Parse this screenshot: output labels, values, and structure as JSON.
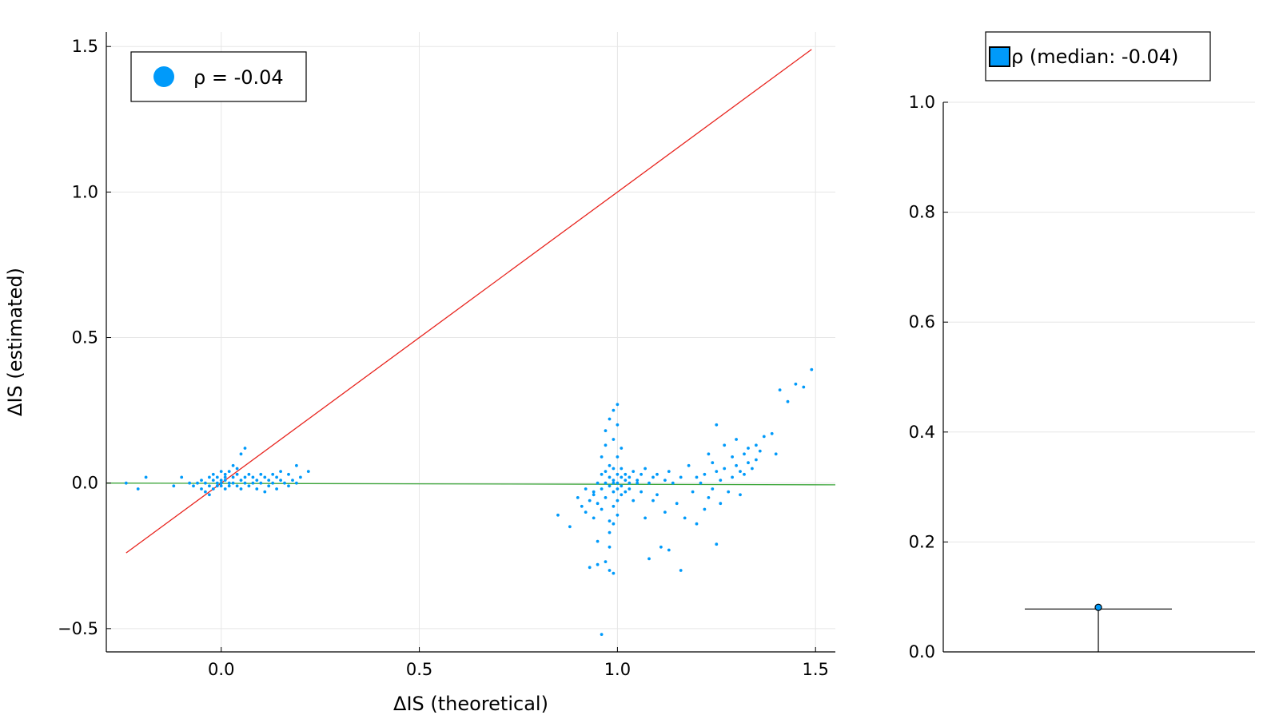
{
  "chart_data": [
    {
      "type": "scatter",
      "title": "",
      "xlabel": "ΔIS (theoretical)",
      "ylabel": "ΔIS (estimated)",
      "xlim": [
        -0.29,
        1.55
      ],
      "ylim": [
        -0.58,
        1.55
      ],
      "xticks": [
        0.0,
        0.5,
        1.0,
        1.5
      ],
      "xtick_labels": [
        "0.0",
        "0.5",
        "1.0",
        "1.5"
      ],
      "yticks": [
        -0.5,
        0.0,
        0.5,
        1.0,
        1.5
      ],
      "ytick_labels": [
        "−0.5",
        "0.0",
        "0.5",
        "1.0",
        "1.5"
      ],
      "grid": true,
      "legend": {
        "position": "top-left",
        "entries": [
          "ρ = -0.04"
        ]
      },
      "series": [
        {
          "name": "ρ = -0.04",
          "color": "#009AFA",
          "points": [
            [
              -0.24,
              0.0
            ],
            [
              -0.21,
              -0.02
            ],
            [
              -0.19,
              0.02
            ],
            [
              -0.12,
              -0.01
            ],
            [
              -0.1,
              0.02
            ],
            [
              -0.08,
              0.0
            ],
            [
              -0.07,
              -0.01
            ],
            [
              -0.06,
              0.0
            ],
            [
              -0.05,
              -0.02
            ],
            [
              -0.05,
              0.01
            ],
            [
              -0.04,
              -0.03
            ],
            [
              -0.04,
              0.0
            ],
            [
              -0.03,
              0.02
            ],
            [
              -0.03,
              -0.01
            ],
            [
              -0.03,
              -0.04
            ],
            [
              -0.02,
              0.01
            ],
            [
              -0.02,
              -0.02
            ],
            [
              -0.02,
              0.03
            ],
            [
              -0.01,
              0.0
            ],
            [
              -0.01,
              -0.01
            ],
            [
              -0.01,
              0.02
            ],
            [
              0.0,
              0.01
            ],
            [
              0.0,
              -0.01
            ],
            [
              0.0,
              0.04
            ],
            [
              0.0,
              0.0
            ],
            [
              0.01,
              0.02
            ],
            [
              0.01,
              -0.02
            ],
            [
              0.01,
              0.03
            ],
            [
              0.01,
              0.01
            ],
            [
              0.02,
              0.0
            ],
            [
              0.02,
              0.04
            ],
            [
              0.02,
              -0.01
            ],
            [
              0.03,
              0.02
            ],
            [
              0.03,
              0.06
            ],
            [
              0.03,
              0.0
            ],
            [
              0.04,
              0.03
            ],
            [
              0.04,
              -0.01
            ],
            [
              0.04,
              0.05
            ],
            [
              0.05,
              0.1
            ],
            [
              0.05,
              0.01
            ],
            [
              0.05,
              -0.02
            ],
            [
              0.06,
              0.12
            ],
            [
              0.06,
              0.02
            ],
            [
              0.06,
              0.0
            ],
            [
              0.07,
              0.03
            ],
            [
              0.07,
              -0.01
            ],
            [
              0.08,
              0.02
            ],
            [
              0.08,
              0.0
            ],
            [
              0.09,
              -0.02
            ],
            [
              0.09,
              0.01
            ],
            [
              0.1,
              0.03
            ],
            [
              0.1,
              0.0
            ],
            [
              0.11,
              0.02
            ],
            [
              0.11,
              -0.03
            ],
            [
              0.12,
              0.01
            ],
            [
              0.12,
              -0.01
            ],
            [
              0.13,
              0.03
            ],
            [
              0.13,
              0.0
            ],
            [
              0.14,
              0.02
            ],
            [
              0.14,
              -0.02
            ],
            [
              0.15,
              0.04
            ],
            [
              0.15,
              0.01
            ],
            [
              0.16,
              0.0
            ],
            [
              0.17,
              0.03
            ],
            [
              0.17,
              -0.01
            ],
            [
              0.18,
              0.01
            ],
            [
              0.19,
              0.06
            ],
            [
              0.19,
              0.0
            ],
            [
              0.2,
              0.02
            ],
            [
              0.22,
              0.04
            ],
            [
              0.85,
              -0.11
            ],
            [
              0.88,
              -0.15
            ],
            [
              0.9,
              -0.05
            ],
            [
              0.91,
              -0.08
            ],
            [
              0.92,
              -0.02
            ],
            [
              0.92,
              -0.1
            ],
            [
              0.93,
              -0.06
            ],
            [
              0.93,
              -0.29
            ],
            [
              0.94,
              -0.03
            ],
            [
              0.94,
              -0.12
            ],
            [
              0.94,
              -0.04
            ],
            [
              0.95,
              0.0
            ],
            [
              0.95,
              -0.07
            ],
            [
              0.95,
              -0.2
            ],
            [
              0.95,
              -0.28
            ],
            [
              0.96,
              0.03
            ],
            [
              0.96,
              -0.02
            ],
            [
              0.96,
              0.09
            ],
            [
              0.96,
              -0.09
            ],
            [
              0.96,
              -0.52
            ],
            [
              0.97,
              0.0
            ],
            [
              0.97,
              0.04
            ],
            [
              0.97,
              -0.05
            ],
            [
              0.97,
              0.18
            ],
            [
              0.97,
              -0.27
            ],
            [
              0.97,
              0.13
            ],
            [
              0.98,
              -0.01
            ],
            [
              0.98,
              0.02
            ],
            [
              0.98,
              0.06
            ],
            [
              0.98,
              -0.13
            ],
            [
              0.98,
              0.22
            ],
            [
              0.98,
              -0.22
            ],
            [
              0.98,
              -0.3
            ],
            [
              0.98,
              -0.17
            ],
            [
              0.99,
              0.0
            ],
            [
              0.99,
              0.01
            ],
            [
              0.99,
              -0.03
            ],
            [
              0.99,
              0.05
            ],
            [
              0.99,
              0.15
            ],
            [
              0.99,
              0.25
            ],
            [
              0.99,
              -0.08
            ],
            [
              0.99,
              -0.14
            ],
            [
              0.99,
              -0.31
            ],
            [
              1.0,
              0.0
            ],
            [
              1.0,
              0.03
            ],
            [
              1.0,
              -0.02
            ],
            [
              1.0,
              0.09
            ],
            [
              1.0,
              -0.06
            ],
            [
              1.0,
              0.2
            ],
            [
              1.0,
              0.27
            ],
            [
              1.0,
              -0.11
            ],
            [
              1.01,
              0.02
            ],
            [
              1.01,
              -0.01
            ],
            [
              1.01,
              0.05
            ],
            [
              1.01,
              0.12
            ],
            [
              1.01,
              -0.04
            ],
            [
              1.02,
              0.01
            ],
            [
              1.02,
              0.03
            ],
            [
              1.02,
              -0.03
            ],
            [
              1.03,
              0.0
            ],
            [
              1.03,
              0.02
            ],
            [
              1.03,
              -0.02
            ],
            [
              1.04,
              0.04
            ],
            [
              1.04,
              -0.06
            ],
            [
              1.05,
              0.01
            ],
            [
              1.05,
              0.0
            ],
            [
              1.06,
              0.03
            ],
            [
              1.06,
              -0.03
            ],
            [
              1.07,
              0.05
            ],
            [
              1.07,
              -0.12
            ],
            [
              1.08,
              0.0
            ],
            [
              1.08,
              -0.26
            ],
            [
              1.09,
              0.02
            ],
            [
              1.09,
              -0.06
            ],
            [
              1.1,
              -0.04
            ],
            [
              1.1,
              0.03
            ],
            [
              1.11,
              -0.22
            ],
            [
              1.12,
              0.01
            ],
            [
              1.12,
              -0.1
            ],
            [
              1.13,
              0.04
            ],
            [
              1.13,
              -0.23
            ],
            [
              1.14,
              0.0
            ],
            [
              1.15,
              -0.07
            ],
            [
              1.16,
              0.02
            ],
            [
              1.16,
              -0.3
            ],
            [
              1.17,
              -0.12
            ],
            [
              1.18,
              0.06
            ],
            [
              1.19,
              -0.03
            ],
            [
              1.2,
              0.02
            ],
            [
              1.2,
              -0.14
            ],
            [
              1.21,
              0.0
            ],
            [
              1.22,
              0.03
            ],
            [
              1.22,
              -0.09
            ],
            [
              1.23,
              0.1
            ],
            [
              1.23,
              -0.05
            ],
            [
              1.24,
              0.07
            ],
            [
              1.24,
              -0.02
            ],
            [
              1.25,
              0.04
            ],
            [
              1.25,
              0.2
            ],
            [
              1.25,
              -0.21
            ],
            [
              1.26,
              0.01
            ],
            [
              1.26,
              -0.07
            ],
            [
              1.27,
              0.05
            ],
            [
              1.27,
              0.13
            ],
            [
              1.28,
              -0.03
            ],
            [
              1.29,
              0.09
            ],
            [
              1.29,
              0.02
            ],
            [
              1.3,
              0.06
            ],
            [
              1.3,
              0.15
            ],
            [
              1.31,
              0.04
            ],
            [
              1.31,
              -0.04
            ],
            [
              1.32,
              0.1
            ],
            [
              1.32,
              0.03
            ],
            [
              1.33,
              0.07
            ],
            [
              1.33,
              0.12
            ],
            [
              1.34,
              0.05
            ],
            [
              1.35,
              0.13
            ],
            [
              1.35,
              0.08
            ],
            [
              1.36,
              0.11
            ],
            [
              1.37,
              0.16
            ],
            [
              1.39,
              0.17
            ],
            [
              1.4,
              0.1
            ],
            [
              1.41,
              0.32
            ],
            [
              1.43,
              0.28
            ],
            [
              1.45,
              0.34
            ],
            [
              1.47,
              0.33
            ],
            [
              1.49,
              0.39
            ]
          ]
        },
        {
          "name": "",
          "type": "line",
          "color": "#E8251F",
          "points": [
            [
              -0.24,
              -0.24
            ],
            [
              1.49,
              1.49
            ]
          ]
        },
        {
          "name": "",
          "type": "line",
          "color": "#3BA639",
          "points": [
            [
              -0.29,
              0.0
            ],
            [
              1.55,
              -0.006
            ]
          ]
        }
      ]
    },
    {
      "type": "box",
      "title": "",
      "xlabel": "",
      "ylabel": "",
      "ylim": [
        0.0,
        1.0
      ],
      "yticks": [
        0.0,
        0.2,
        0.4,
        0.6,
        0.8,
        1.0
      ],
      "ytick_labels": [
        "0.0",
        "0.2",
        "0.4",
        "0.6",
        "0.8",
        "1.0"
      ],
      "grid": true,
      "legend": {
        "position": "top",
        "entries": [
          "ρ (median: -0.04)"
        ]
      },
      "series": [
        {
          "name": "ρ (median: -0.04)",
          "color": "#009AFA",
          "whisker_low": 0.0,
          "cap": 0.078,
          "outlier": 0.081
        }
      ]
    }
  ]
}
